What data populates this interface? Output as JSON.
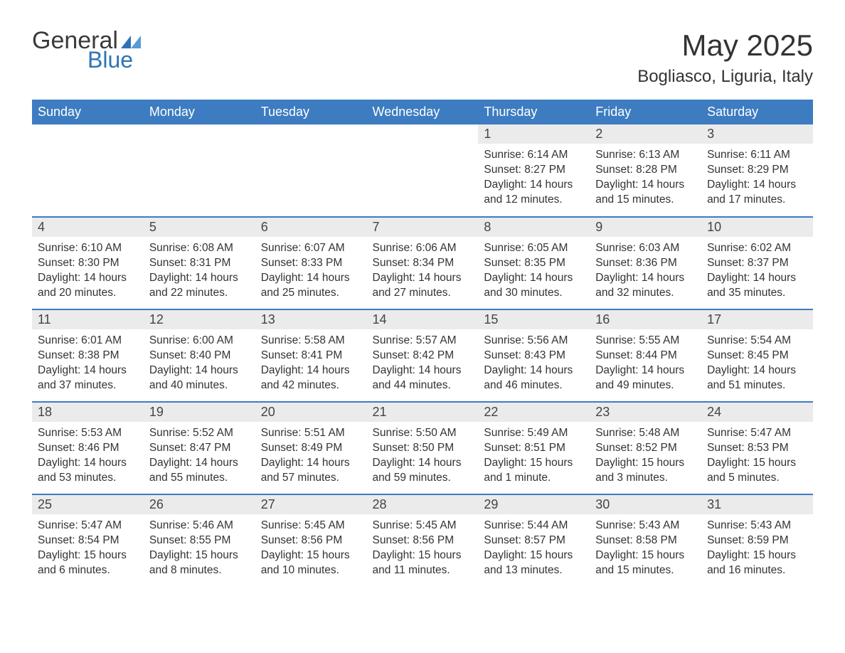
{
  "logo": {
    "general": "General",
    "blue": "Blue",
    "accent_color": "#2e74b5"
  },
  "title": "May 2025",
  "location": "Bogliasco, Liguria, Italy",
  "header": {
    "bg_color": "#3d7cc0",
    "text_color": "#ffffff",
    "days": [
      "Sunday",
      "Monday",
      "Tuesday",
      "Wednesday",
      "Thursday",
      "Friday",
      "Saturday"
    ]
  },
  "daynum_bg": "#ebebeb",
  "row_border_color": "#3d7cc0",
  "weeks": [
    [
      {
        "empty": true
      },
      {
        "empty": true
      },
      {
        "empty": true
      },
      {
        "empty": true
      },
      {
        "day": "1",
        "sunrise": "Sunrise: 6:14 AM",
        "sunset": "Sunset: 8:27 PM",
        "daylight": "Daylight: 14 hours and 12 minutes."
      },
      {
        "day": "2",
        "sunrise": "Sunrise: 6:13 AM",
        "sunset": "Sunset: 8:28 PM",
        "daylight": "Daylight: 14 hours and 15 minutes."
      },
      {
        "day": "3",
        "sunrise": "Sunrise: 6:11 AM",
        "sunset": "Sunset: 8:29 PM",
        "daylight": "Daylight: 14 hours and 17 minutes."
      }
    ],
    [
      {
        "day": "4",
        "sunrise": "Sunrise: 6:10 AM",
        "sunset": "Sunset: 8:30 PM",
        "daylight": "Daylight: 14 hours and 20 minutes."
      },
      {
        "day": "5",
        "sunrise": "Sunrise: 6:08 AM",
        "sunset": "Sunset: 8:31 PM",
        "daylight": "Daylight: 14 hours and 22 minutes."
      },
      {
        "day": "6",
        "sunrise": "Sunrise: 6:07 AM",
        "sunset": "Sunset: 8:33 PM",
        "daylight": "Daylight: 14 hours and 25 minutes."
      },
      {
        "day": "7",
        "sunrise": "Sunrise: 6:06 AM",
        "sunset": "Sunset: 8:34 PM",
        "daylight": "Daylight: 14 hours and 27 minutes."
      },
      {
        "day": "8",
        "sunrise": "Sunrise: 6:05 AM",
        "sunset": "Sunset: 8:35 PM",
        "daylight": "Daylight: 14 hours and 30 minutes."
      },
      {
        "day": "9",
        "sunrise": "Sunrise: 6:03 AM",
        "sunset": "Sunset: 8:36 PM",
        "daylight": "Daylight: 14 hours and 32 minutes."
      },
      {
        "day": "10",
        "sunrise": "Sunrise: 6:02 AM",
        "sunset": "Sunset: 8:37 PM",
        "daylight": "Daylight: 14 hours and 35 minutes."
      }
    ],
    [
      {
        "day": "11",
        "sunrise": "Sunrise: 6:01 AM",
        "sunset": "Sunset: 8:38 PM",
        "daylight": "Daylight: 14 hours and 37 minutes."
      },
      {
        "day": "12",
        "sunrise": "Sunrise: 6:00 AM",
        "sunset": "Sunset: 8:40 PM",
        "daylight": "Daylight: 14 hours and 40 minutes."
      },
      {
        "day": "13",
        "sunrise": "Sunrise: 5:58 AM",
        "sunset": "Sunset: 8:41 PM",
        "daylight": "Daylight: 14 hours and 42 minutes."
      },
      {
        "day": "14",
        "sunrise": "Sunrise: 5:57 AM",
        "sunset": "Sunset: 8:42 PM",
        "daylight": "Daylight: 14 hours and 44 minutes."
      },
      {
        "day": "15",
        "sunrise": "Sunrise: 5:56 AM",
        "sunset": "Sunset: 8:43 PM",
        "daylight": "Daylight: 14 hours and 46 minutes."
      },
      {
        "day": "16",
        "sunrise": "Sunrise: 5:55 AM",
        "sunset": "Sunset: 8:44 PM",
        "daylight": "Daylight: 14 hours and 49 minutes."
      },
      {
        "day": "17",
        "sunrise": "Sunrise: 5:54 AM",
        "sunset": "Sunset: 8:45 PM",
        "daylight": "Daylight: 14 hours and 51 minutes."
      }
    ],
    [
      {
        "day": "18",
        "sunrise": "Sunrise: 5:53 AM",
        "sunset": "Sunset: 8:46 PM",
        "daylight": "Daylight: 14 hours and 53 minutes."
      },
      {
        "day": "19",
        "sunrise": "Sunrise: 5:52 AM",
        "sunset": "Sunset: 8:47 PM",
        "daylight": "Daylight: 14 hours and 55 minutes."
      },
      {
        "day": "20",
        "sunrise": "Sunrise: 5:51 AM",
        "sunset": "Sunset: 8:49 PM",
        "daylight": "Daylight: 14 hours and 57 minutes."
      },
      {
        "day": "21",
        "sunrise": "Sunrise: 5:50 AM",
        "sunset": "Sunset: 8:50 PM",
        "daylight": "Daylight: 14 hours and 59 minutes."
      },
      {
        "day": "22",
        "sunrise": "Sunrise: 5:49 AM",
        "sunset": "Sunset: 8:51 PM",
        "daylight": "Daylight: 15 hours and 1 minute."
      },
      {
        "day": "23",
        "sunrise": "Sunrise: 5:48 AM",
        "sunset": "Sunset: 8:52 PM",
        "daylight": "Daylight: 15 hours and 3 minutes."
      },
      {
        "day": "24",
        "sunrise": "Sunrise: 5:47 AM",
        "sunset": "Sunset: 8:53 PM",
        "daylight": "Daylight: 15 hours and 5 minutes."
      }
    ],
    [
      {
        "day": "25",
        "sunrise": "Sunrise: 5:47 AM",
        "sunset": "Sunset: 8:54 PM",
        "daylight": "Daylight: 15 hours and 6 minutes."
      },
      {
        "day": "26",
        "sunrise": "Sunrise: 5:46 AM",
        "sunset": "Sunset: 8:55 PM",
        "daylight": "Daylight: 15 hours and 8 minutes."
      },
      {
        "day": "27",
        "sunrise": "Sunrise: 5:45 AM",
        "sunset": "Sunset: 8:56 PM",
        "daylight": "Daylight: 15 hours and 10 minutes."
      },
      {
        "day": "28",
        "sunrise": "Sunrise: 5:45 AM",
        "sunset": "Sunset: 8:56 PM",
        "daylight": "Daylight: 15 hours and 11 minutes."
      },
      {
        "day": "29",
        "sunrise": "Sunrise: 5:44 AM",
        "sunset": "Sunset: 8:57 PM",
        "daylight": "Daylight: 15 hours and 13 minutes."
      },
      {
        "day": "30",
        "sunrise": "Sunrise: 5:43 AM",
        "sunset": "Sunset: 8:58 PM",
        "daylight": "Daylight: 15 hours and 15 minutes."
      },
      {
        "day": "31",
        "sunrise": "Sunrise: 5:43 AM",
        "sunset": "Sunset: 8:59 PM",
        "daylight": "Daylight: 15 hours and 16 minutes."
      }
    ]
  ]
}
